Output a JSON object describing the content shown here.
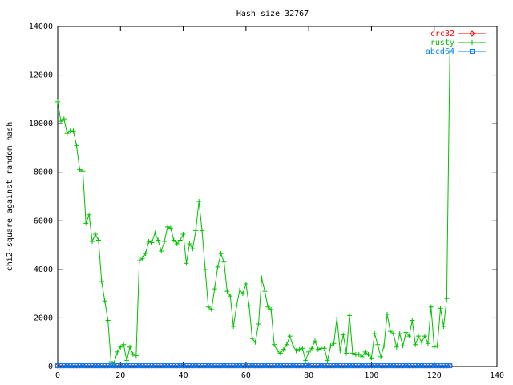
{
  "chart_data": {
    "type": "line",
    "title": "Hash size 32767",
    "y_label": "chi2-square against random hash",
    "x": [
      0,
      1,
      2,
      3,
      4,
      5,
      6,
      7,
      8,
      9,
      10,
      11,
      12,
      13,
      14,
      15,
      16,
      17,
      18,
      19,
      20,
      21,
      22,
      23,
      24,
      25,
      26,
      27,
      28,
      29,
      30,
      31,
      32,
      33,
      34,
      35,
      36,
      37,
      38,
      39,
      40,
      41,
      42,
      43,
      44,
      45,
      46,
      47,
      48,
      49,
      50,
      51,
      52,
      53,
      54,
      55,
      56,
      57,
      58,
      59,
      60,
      61,
      62,
      63,
      64,
      65,
      66,
      67,
      68,
      69,
      70,
      71,
      72,
      73,
      74,
      75,
      76,
      77,
      78,
      79,
      80,
      81,
      82,
      83,
      84,
      85,
      86,
      87,
      88,
      89,
      90,
      91,
      92,
      93,
      94,
      95,
      96,
      97,
      98,
      99,
      100,
      101,
      102,
      103,
      104,
      105,
      106,
      107,
      108,
      109,
      110,
      111,
      112,
      113,
      114,
      115,
      116,
      117,
      118,
      119,
      120,
      121,
      122,
      123,
      124,
      125
    ],
    "series": [
      {
        "name": "crc32",
        "color": "#ff0000",
        "marker": "diamond",
        "values": [
          40,
          40,
          40,
          40,
          40,
          40,
          40,
          40,
          40,
          40,
          40,
          40,
          40,
          40,
          40,
          40,
          40,
          40,
          40,
          40,
          40,
          40,
          40,
          40,
          40,
          40,
          40,
          40,
          40,
          40,
          40,
          40,
          40,
          40,
          40,
          40,
          40,
          40,
          40,
          40,
          40,
          40,
          40,
          40,
          40,
          40,
          40,
          40,
          40,
          40,
          40,
          40,
          40,
          40,
          40,
          40,
          40,
          40,
          40,
          40,
          40,
          40,
          40,
          40,
          40,
          40,
          40,
          40,
          40,
          40,
          40,
          40,
          40,
          40,
          40,
          40,
          40,
          40,
          40,
          40,
          40,
          40,
          40,
          40,
          40,
          40,
          40,
          40,
          40,
          40,
          40,
          40,
          40,
          40,
          40,
          40,
          40,
          40,
          40,
          40,
          40,
          40,
          40,
          40,
          40,
          40,
          40,
          40,
          40,
          40,
          40,
          40,
          40,
          40,
          40,
          40,
          40,
          40,
          40,
          40,
          40,
          40,
          40,
          40,
          40,
          40
        ]
      },
      {
        "name": "rusty",
        "color": "#00c000",
        "marker": "plus",
        "values": [
          10900,
          10100,
          10200,
          9600,
          9700,
          9700,
          9100,
          8100,
          8050,
          5900,
          6250,
          5150,
          5450,
          5200,
          3500,
          2700,
          1900,
          200,
          150,
          600,
          800,
          900,
          250,
          800,
          500,
          450,
          4350,
          4450,
          4650,
          5150,
          5100,
          5500,
          5200,
          4750,
          5150,
          5750,
          5700,
          5200,
          5050,
          5200,
          5450,
          4250,
          5050,
          4850,
          5600,
          6800,
          5600,
          4000,
          2450,
          2350,
          3200,
          4100,
          4650,
          4300,
          3100,
          2900,
          1650,
          2500,
          3150,
          3000,
          3400,
          2500,
          1150,
          1000,
          1750,
          3650,
          3100,
          2450,
          2350,
          900,
          650,
          550,
          700,
          900,
          1250,
          850,
          650,
          700,
          750,
          250,
          600,
          750,
          1050,
          700,
          750,
          750,
          250,
          850,
          950,
          2000,
          650,
          1300,
          550,
          2100,
          550,
          500,
          500,
          400,
          600,
          500,
          350,
          1350,
          900,
          400,
          850,
          2150,
          1450,
          1350,
          800,
          1350,
          850,
          1400,
          1250,
          1900,
          900,
          1250,
          1000,
          1250,
          950,
          2450,
          800,
          850,
          2400,
          1650,
          2800,
          13000
        ]
      },
      {
        "name": "abcd64",
        "color": "#0080ff",
        "marker": "square",
        "values": [
          30,
          30,
          30,
          30,
          30,
          30,
          30,
          30,
          30,
          30,
          30,
          30,
          30,
          30,
          30,
          30,
          30,
          30,
          30,
          30,
          30,
          30,
          30,
          30,
          30,
          30,
          30,
          30,
          30,
          30,
          30,
          30,
          30,
          30,
          30,
          30,
          30,
          30,
          30,
          30,
          30,
          30,
          30,
          30,
          30,
          30,
          30,
          30,
          30,
          30,
          30,
          30,
          30,
          30,
          30,
          30,
          30,
          30,
          30,
          30,
          30,
          30,
          30,
          30,
          30,
          30,
          30,
          30,
          30,
          30,
          30,
          30,
          30,
          30,
          30,
          30,
          30,
          30,
          30,
          30,
          30,
          30,
          30,
          30,
          30,
          30,
          30,
          30,
          30,
          30,
          30,
          30,
          30,
          30,
          30,
          30,
          30,
          30,
          30,
          30,
          30,
          30,
          30,
          30,
          30,
          30,
          30,
          30,
          30,
          30,
          30,
          30,
          30,
          30,
          30,
          30,
          30,
          30,
          30,
          30,
          30,
          30,
          30,
          30,
          30,
          30
        ]
      }
    ],
    "xlim": [
      0,
      140
    ],
    "xticks": [
      0,
      20,
      40,
      60,
      80,
      100,
      120,
      140
    ],
    "ylim": [
      0,
      14000
    ],
    "yticks": [
      0,
      2000,
      4000,
      6000,
      8000,
      10000,
      12000,
      14000
    ],
    "grid": false,
    "legend": "top-right"
  }
}
